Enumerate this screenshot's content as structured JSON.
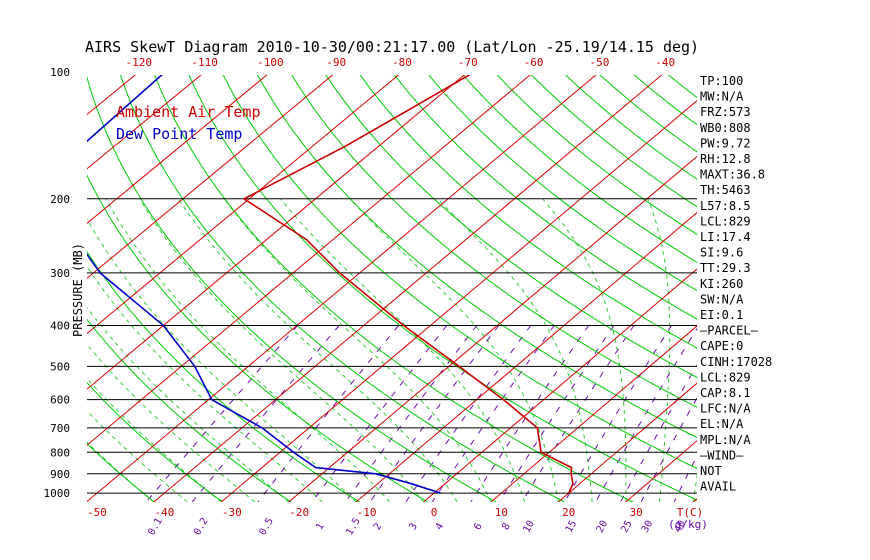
{
  "chart_data": {
    "type": "line",
    "title": "AIRS SkewT Diagram 2010-10-30/00:21:17.00 (Lat/Lon -25.19/14.15 deg)",
    "ylabel": "PRESSURE (MB)",
    "xlabel_bottom_unit": "T(C)",
    "mixing_ratio_unit": "(g/kg)",
    "pressure_ticks": [
      100,
      200,
      300,
      400,
      500,
      600,
      700,
      800,
      900,
      1000
    ],
    "top_temp_ticks": [
      -120,
      -110,
      -100,
      -90,
      -80,
      -70,
      -60,
      -50,
      -40
    ],
    "bottom_temp_ticks": [
      -50,
      -40,
      -30,
      -20,
      -10,
      0,
      10,
      20,
      30
    ],
    "mixing_ratio_labels": [
      "0.1",
      "0.2",
      "0.5",
      "1",
      "1.5",
      "2",
      "3",
      "4",
      "6",
      "8",
      "10",
      "15",
      "20",
      "25",
      "30",
      "40"
    ],
    "grid": true,
    "legend": "top-left",
    "series": [
      {
        "name": "Ambient Air Temp",
        "color": "#cc0000",
        "points": [
          {
            "p": 100,
            "t": -69.0
          },
          {
            "p": 150,
            "t": -75.0
          },
          {
            "p": 200,
            "t": -80.8
          },
          {
            "p": 250,
            "t": -64.0
          },
          {
            "p": 300,
            "t": -53.0
          },
          {
            "p": 400,
            "t": -34.0
          },
          {
            "p": 500,
            "t": -18.5
          },
          {
            "p": 600,
            "t": -6.0
          },
          {
            "p": 700,
            "t": 4.0
          },
          {
            "p": 800,
            "t": 8.8
          },
          {
            "p": 870,
            "t": 16.0
          },
          {
            "p": 900,
            "t": 17.0
          },
          {
            "p": 950,
            "t": 19.0
          },
          {
            "p": 1000,
            "t": 20.0
          }
        ]
      },
      {
        "name": "Dew Point Temp",
        "color": "#0000cc",
        "points": [
          {
            "p": 100,
            "t": -116.0
          },
          {
            "p": 150,
            "t": -115.0
          },
          {
            "p": 200,
            "t": -110.5
          },
          {
            "p": 300,
            "t": -89.0
          },
          {
            "p": 400,
            "t": -70.0
          },
          {
            "p": 500,
            "t": -58.0
          },
          {
            "p": 600,
            "t": -49.5
          },
          {
            "p": 700,
            "t": -37.0
          },
          {
            "p": 800,
            "t": -28.0
          },
          {
            "p": 870,
            "t": -22.0
          },
          {
            "p": 900,
            "t": -12.0
          },
          {
            "p": 950,
            "t": -5.0
          },
          {
            "p": 1000,
            "t": 1.0
          }
        ]
      }
    ]
  },
  "stats": [
    "TP:100",
    "MW:N/A",
    "FRZ:573",
    "WB0:808",
    "PW:9.72",
    "RH:12.8",
    "MAXT:36.8",
    "TH:5463",
    "L57:8.5",
    "LCL:829",
    "LI:17.4",
    "SI:9.6",
    "TT:29.3",
    "KI:260",
    "SW:N/A",
    "EI:0.1",
    "—PARCEL—",
    "CAPE:0",
    "CINH:17028",
    "LCL:829",
    "CAP:8.1",
    "LFC:N/A",
    "EL:N/A",
    "MPL:N/A",
    "—WIND—",
    "NOT",
    "AVAIL"
  ],
  "colors": {
    "temp": "#cc0000",
    "dew": "#0000cc",
    "isotherm": "#dd0000",
    "dry_adiabat": "#00cc00",
    "moist_adiabat": "#33cc33",
    "mixing_ratio": "#6a0dad",
    "isobar": "#000000"
  }
}
